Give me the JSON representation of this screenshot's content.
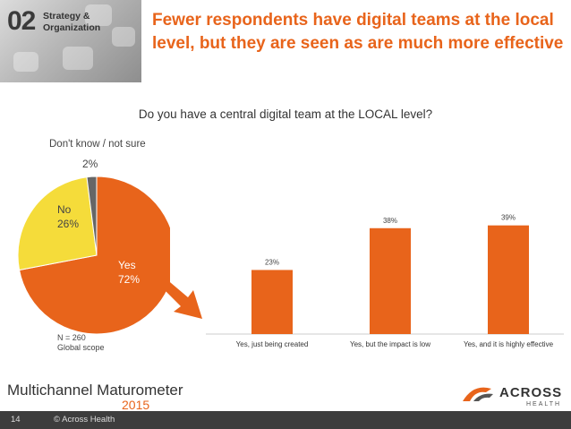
{
  "header": {
    "section_number": "02",
    "section_name": "Strategy & Organization",
    "headline": "Fewer respondents have digital teams at the local level, but they are seen as are much more effective"
  },
  "question": "Do you have a central digital team at the LOCAL level?",
  "pie": {
    "labels": {
      "dont_know": "Don't know / not sure",
      "dont_know_pct": "2%",
      "no": "No",
      "no_pct": "26%",
      "yes": "Yes",
      "yes_pct": "72%"
    },
    "note_n": "N = 260",
    "note_scope": "Global scope"
  },
  "chart_data": [
    {
      "type": "pie",
      "title": "Do you have a central digital team at the LOCAL level?",
      "slices": [
        {
          "label": "Yes",
          "value": 72,
          "color": "#e8641b"
        },
        {
          "label": "No",
          "value": 26,
          "color": "#f5dc3a"
        },
        {
          "label": "Don't know / not sure",
          "value": 2,
          "color": "#666666"
        }
      ]
    },
    {
      "type": "bar",
      "categories": [
        "Yes, just being created",
        "Yes, but the impact is low",
        "Yes, and it is highly effective"
      ],
      "values": [
        23,
        38,
        39
      ],
      "data_labels": [
        "23%",
        "38%",
        "39%"
      ],
      "ylim": [
        0,
        45
      ],
      "color": "#e8641b"
    }
  ],
  "footer": {
    "brand_title": "Multichannel Maturometer",
    "brand_year": "2015",
    "logo_text": "ACROSS",
    "logo_sub": "HEALTH",
    "page_number": "14",
    "copyright": "© Across Health"
  },
  "colors": {
    "accent": "#e8641b",
    "no_slice": "#f5dc3a",
    "unknown_slice": "#666666",
    "footer_bar": "#3d3d3d"
  }
}
